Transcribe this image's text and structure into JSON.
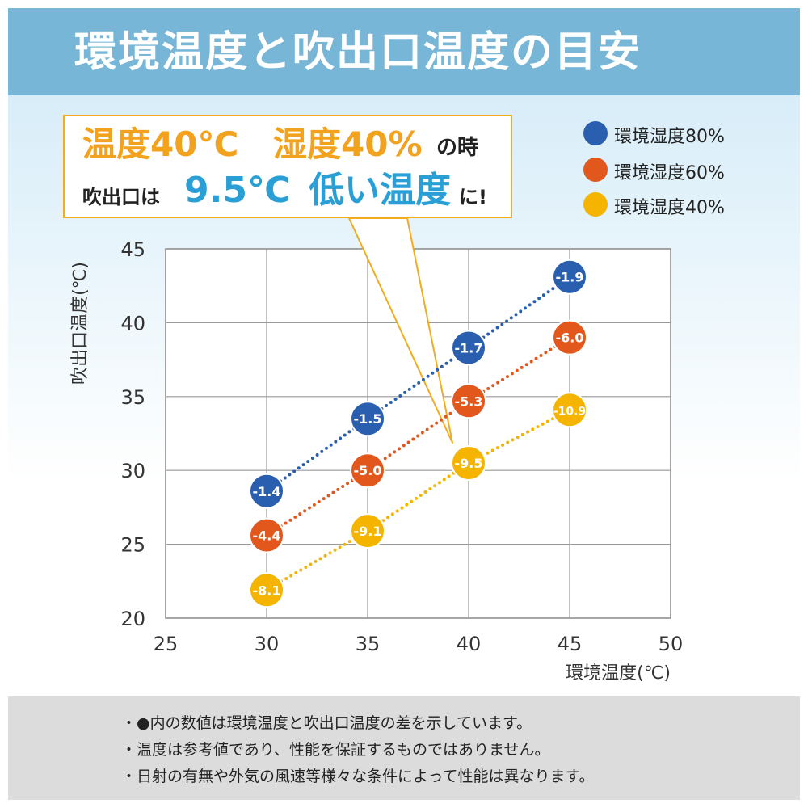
{
  "title": "環境温度と吹出口温度の目安",
  "callout": {
    "line1_temp": "温度40℃",
    "line1_humidity": "湿度40%",
    "line1_suffix": "の時",
    "line2_prefix": "吹出口は",
    "line2_value": "9.5℃",
    "line2_low": "低い温度",
    "line2_suffix": "に!"
  },
  "notes": [
    "・●内の数値は環境温度と吹出口温度の差を示しています。",
    "・温度は参考値であり、性能を保証するものではありません。",
    "・日射の有無や外気の風速等様々な条件によって性能は異なります。"
  ],
  "chart_data": {
    "type": "scatter",
    "xlabel": "環境温度(℃)",
    "ylabel": "吹出口温度(℃)",
    "xlim": [
      25,
      50
    ],
    "ylim": [
      20,
      45
    ],
    "xticks": [
      25,
      30,
      35,
      40,
      45,
      50
    ],
    "yticks": [
      20,
      25,
      30,
      35,
      40,
      45
    ],
    "grid": true,
    "legend_position": "top-right",
    "series": [
      {
        "name": "環境湿度80%",
        "color": "#2a5faf",
        "x": [
          30,
          35,
          40,
          45
        ],
        "y": [
          28.6,
          33.5,
          38.3,
          43.1
        ],
        "labels": [
          "-1.4",
          "-1.5",
          "-1.7",
          "-1.9"
        ]
      },
      {
        "name": "環境湿度60%",
        "color": "#e2581c",
        "x": [
          30,
          35,
          40,
          45
        ],
        "y": [
          25.6,
          30.0,
          34.7,
          39.0
        ],
        "labels": [
          "-4.4",
          "-5.0",
          "-5.3",
          "-6.0"
        ]
      },
      {
        "name": "環境湿度40%",
        "color": "#f4b400",
        "x": [
          30,
          35,
          40,
          45
        ],
        "y": [
          21.9,
          25.9,
          30.5,
          34.1
        ],
        "labels": [
          "-8.1",
          "-9.1",
          "-9.5",
          "-10.9"
        ]
      }
    ]
  }
}
